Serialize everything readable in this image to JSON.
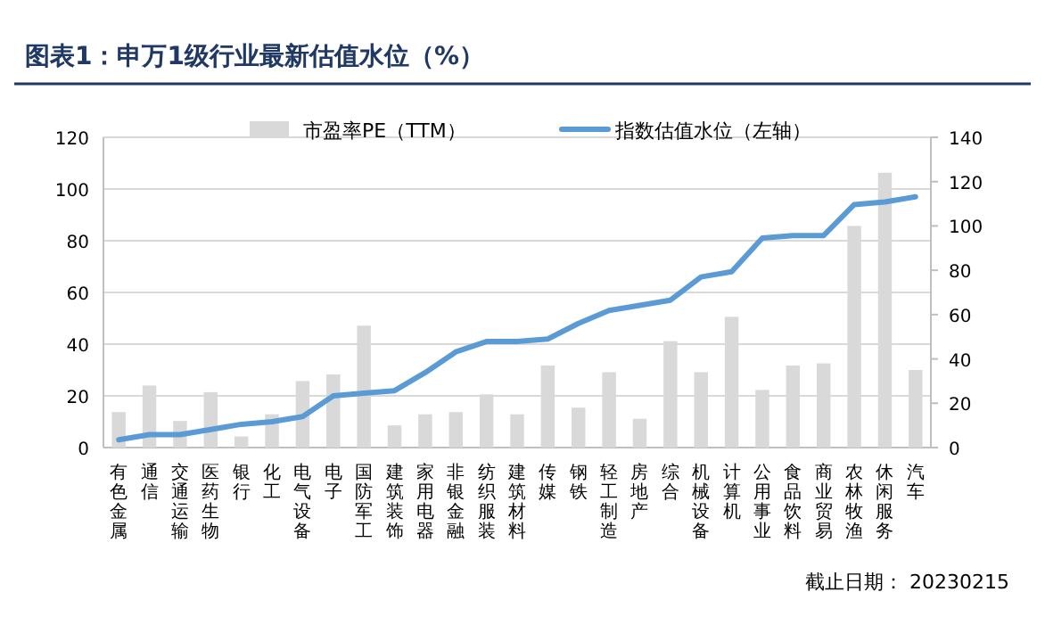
{
  "chart_data": {
    "type": "bar",
    "title": "图表1：申万1级行业最新估值水位（%）",
    "categories": [
      "有色金属",
      "通信",
      "交通运输",
      "医药生物",
      "银行",
      "化工",
      "电气设备",
      "电子",
      "国防军工",
      "建筑装饰",
      "家用电器",
      "非银金融",
      "纺织服装",
      "建筑材料",
      "传媒",
      "钢铁",
      "轻工制造",
      "房地产",
      "综合",
      "机械设备",
      "计算机",
      "公用事业",
      "食品饮料",
      "商业贸易",
      "农林牧渔",
      "休闲服务",
      "汽车"
    ],
    "series": [
      {
        "name": "市盈率PE（TTM）",
        "axis": "y2",
        "color": "#d9d9d9",
        "values": [
          16,
          28,
          12,
          25,
          5,
          15,
          30,
          33,
          55,
          10,
          15,
          16,
          24,
          15,
          37,
          18,
          34,
          13,
          48,
          34,
          59,
          26,
          37,
          38,
          100,
          124,
          35
        ]
      },
      {
        "name": "指数估值水位（左轴）",
        "type": "line",
        "color": "#5b9bd5",
        "values": [
          3,
          5,
          5,
          7,
          9,
          10,
          12,
          20,
          21,
          22,
          29,
          37,
          41,
          41,
          42,
          48,
          53,
          55,
          57,
          66,
          68,
          81,
          82,
          82,
          94,
          95,
          97
        ]
      }
    ],
    "ylim": [
      0,
      120
    ],
    "yticks": [
      0,
      20,
      40,
      60,
      80,
      100,
      120
    ],
    "y2lim": [
      0,
      140
    ],
    "y2ticks": [
      0,
      20,
      40,
      60,
      80,
      100,
      120,
      140
    ],
    "grid": "y",
    "legend": "top",
    "annotations": [
      "截止日期：  20230215"
    ]
  }
}
